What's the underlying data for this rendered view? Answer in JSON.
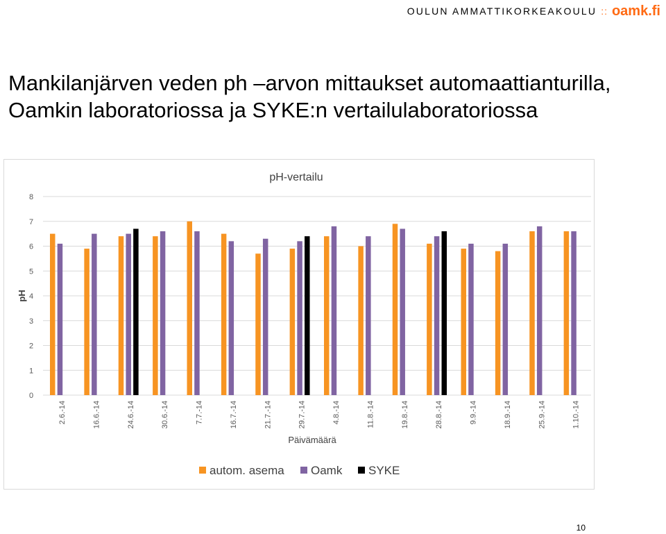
{
  "header": {
    "school_name": "OULUN AMMATTIKORKEAKOULU",
    "separator": "::",
    "logo_text": "oamk.fi"
  },
  "slide": {
    "title_line1": "Mankilanjärven veden ph –arvon mittaukset automaattianturilla,",
    "title_line2": "Oamkin laboratoriossa ja SYKE:n vertailulaboratoriossa",
    "page_number": "10"
  },
  "chart_data": {
    "type": "bar",
    "title": "pH-vertailu",
    "xlabel": "Päivämäärä",
    "ylabel": "pH",
    "ylim": [
      0,
      8
    ],
    "yticks": [
      0,
      1,
      2,
      3,
      4,
      5,
      6,
      7,
      8
    ],
    "grid": true,
    "legend_position": "bottom",
    "categories": [
      "2.6.-14",
      "16.6.-14",
      "24.6.-14",
      "30.6.-14",
      "7.7.-14",
      "16.7.-14",
      "21.7.-14",
      "29.7.-14",
      "4.8.-14",
      "11.8.-14",
      "19.8.-14",
      "28.8.-14",
      "9.9.-14",
      "18.9.-14",
      "25.9.-14",
      "1.10.-14"
    ],
    "series": [
      {
        "name": "autom. asema",
        "color": "#f79422",
        "values": [
          6.5,
          5.9,
          6.4,
          6.4,
          7.0,
          6.5,
          5.7,
          5.9,
          6.4,
          6.0,
          6.9,
          6.1,
          5.9,
          5.8,
          6.6,
          6.6
        ]
      },
      {
        "name": "Oamk",
        "color": "#8064a2",
        "values": [
          6.1,
          6.5,
          6.5,
          6.6,
          6.6,
          6.2,
          6.3,
          6.2,
          6.8,
          6.4,
          6.7,
          6.4,
          6.1,
          6.1,
          6.8,
          6.6
        ]
      },
      {
        "name": "SYKE",
        "color": "#000000",
        "values": [
          null,
          null,
          6.7,
          null,
          null,
          null,
          null,
          6.4,
          null,
          null,
          null,
          6.6,
          null,
          null,
          null,
          null
        ]
      }
    ]
  }
}
